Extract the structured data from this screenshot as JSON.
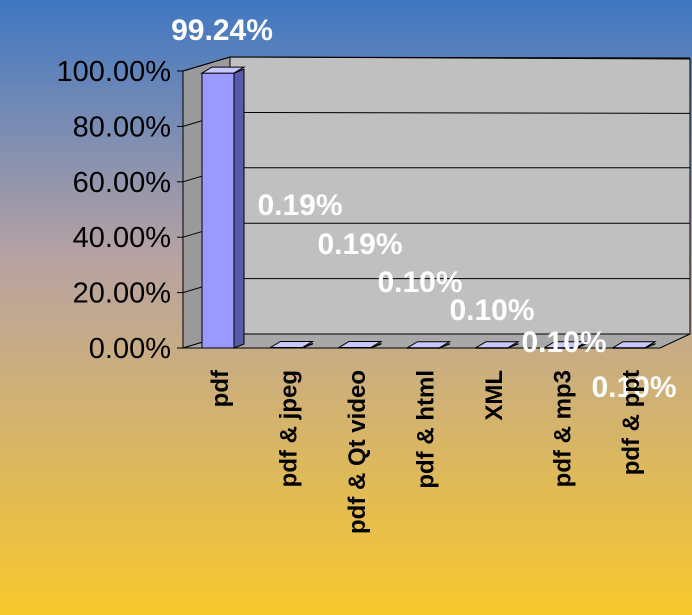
{
  "chart_data": {
    "type": "bar",
    "title": "",
    "xlabel": "",
    "ylabel": "",
    "three_d": true,
    "categories": [
      "pdf",
      "pdf & jpeg",
      "pdf & Qt video",
      "pdf & html",
      "XML",
      "pdf & mp3",
      "pdf & ppt"
    ],
    "values": [
      99.24,
      0.19,
      0.19,
      0.1,
      0.1,
      0.1,
      0.1
    ],
    "data_labels": [
      "99.24%",
      "0.19%",
      "0.19%",
      "0.10%",
      "0.10%",
      "0.10%",
      "0.10%"
    ],
    "ylim": [
      0,
      100
    ],
    "yticks": [
      "0.00%",
      "20.00%",
      "40.00%",
      "60.00%",
      "80.00%",
      "100.00%"
    ],
    "grid": true,
    "legend": "none",
    "colors": {
      "background_top": "#3f77c2",
      "background_mid": "#b7a2a3",
      "background_bottom": "#f7c82c",
      "wall": "#c0c0c0",
      "floor": "#a8a8a8",
      "bar_front": "#9999ff",
      "bar_side": "#5a5aa8",
      "bar_top": "#c8c8ff",
      "data_label": "#ffffff",
      "axis_text": "#000000"
    }
  }
}
